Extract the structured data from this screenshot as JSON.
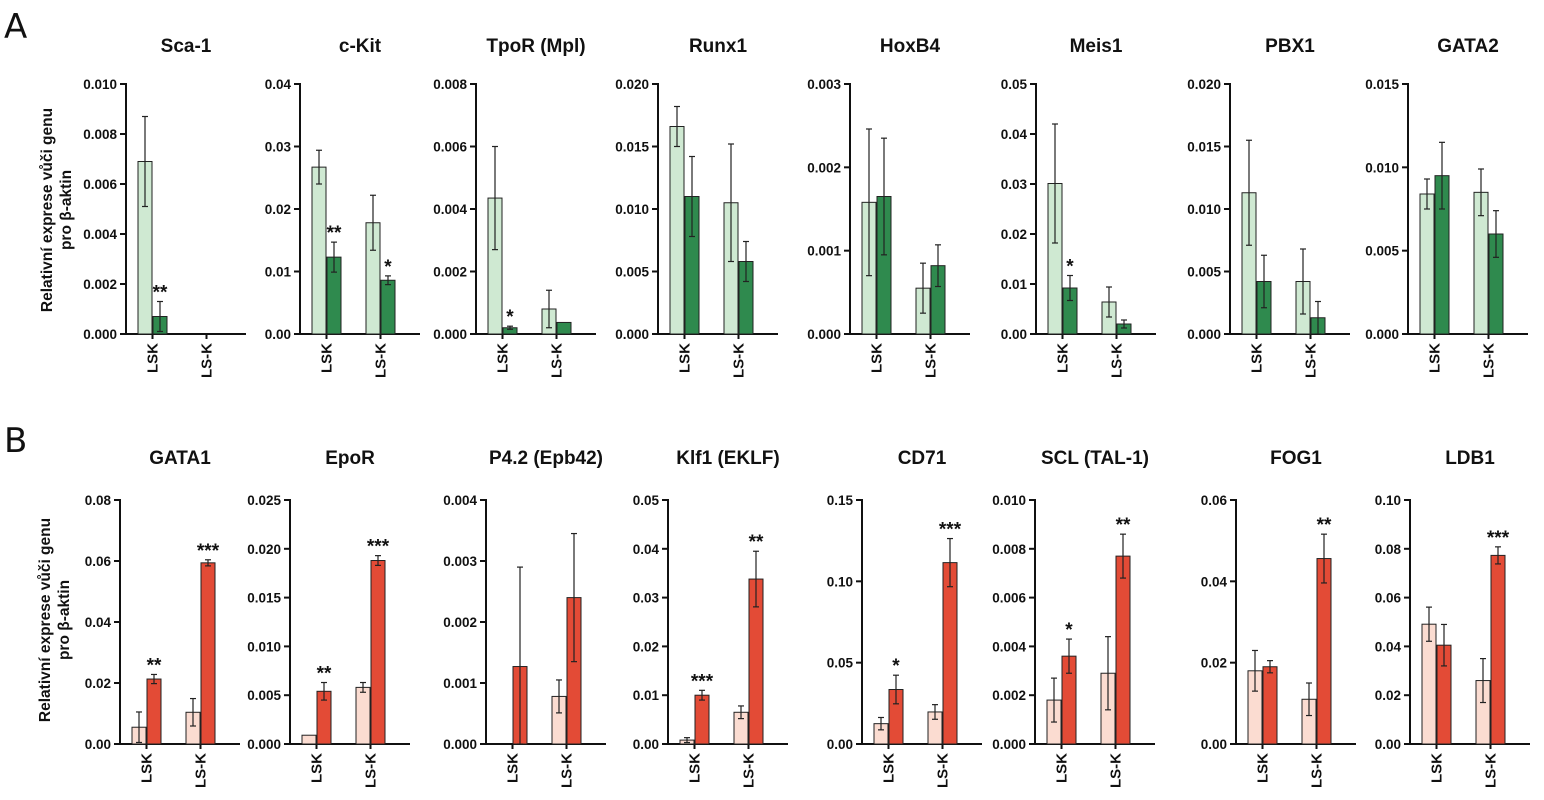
{
  "panels": [
    {
      "letter": "A",
      "y_axis_label_line1": "Relativní exprese vůči genu",
      "y_axis_label_line2": "pro β-aktin"
    },
    {
      "letter": "B",
      "y_axis_label_line1": "Relativní exprese vůči genu",
      "y_axis_label_line2": "pro β-aktin"
    }
  ],
  "colors": {
    "A_light": "#cfe9d2",
    "A_dark": "#2f8a4e",
    "B_light": "#fbdcd1",
    "B_dark": "#e34b36",
    "stroke": "#222222"
  },
  "chart_data": [
    {
      "panel": "A",
      "type": "bar",
      "title": "Sca-1",
      "categories": [
        "LSK",
        "LS-K"
      ],
      "ylim": [
        0,
        0.01
      ],
      "yticks": [
        "0.000",
        "0.002",
        "0.004",
        "0.006",
        "0.008",
        "0.010"
      ],
      "series": [
        {
          "values": [
            0.0069,
            null
          ],
          "errors": [
            0.0018,
            null
          ]
        },
        {
          "values": [
            0.0007,
            null
          ],
          "errors": [
            0.0006,
            null
          ]
        }
      ],
      "annotations": [
        {
          "category": "LSK",
          "series": 1,
          "text": "**"
        }
      ]
    },
    {
      "panel": "A",
      "type": "bar",
      "title": "c-Kit",
      "categories": [
        "LSK",
        "LS-K"
      ],
      "ylim": [
        0,
        0.04
      ],
      "yticks": [
        "0.00",
        "0.01",
        "0.02",
        "0.03",
        "0.04"
      ],
      "series": [
        {
          "values": [
            0.0267,
            0.0178
          ],
          "errors": [
            0.0027,
            0.0044
          ]
        },
        {
          "values": [
            0.0123,
            0.0086
          ],
          "errors": [
            0.0024,
            0.0007
          ]
        }
      ],
      "annotations": [
        {
          "category": "LSK",
          "series": 1,
          "text": "**"
        },
        {
          "category": "LS-K",
          "series": 1,
          "text": "*"
        }
      ]
    },
    {
      "panel": "A",
      "type": "bar",
      "title": "TpoR (Mpl)",
      "categories": [
        "LSK",
        "LS-K"
      ],
      "ylim": [
        0,
        0.008
      ],
      "yticks": [
        "0.000",
        "0.002",
        "0.004",
        "0.006",
        "0.008"
      ],
      "series": [
        {
          "values": [
            0.00435,
            0.0008
          ],
          "errors": [
            0.00165,
            0.0006
          ]
        },
        {
          "values": [
            0.0002,
            0.00037
          ],
          "errors": [
            5e-05,
            0
          ]
        }
      ],
      "annotations": [
        {
          "category": "LSK",
          "series": 1,
          "text": "*"
        }
      ]
    },
    {
      "panel": "A",
      "type": "bar",
      "title": "Runx1",
      "categories": [
        "LSK",
        "LS-K"
      ],
      "ylim": [
        0,
        0.02
      ],
      "yticks": [
        "0.000",
        "0.005",
        "0.010",
        "0.015",
        "0.020"
      ],
      "series": [
        {
          "values": [
            0.0166,
            0.0105
          ],
          "errors": [
            0.0016,
            0.0047
          ]
        },
        {
          "values": [
            0.011,
            0.0058
          ],
          "errors": [
            0.0032,
            0.0016
          ]
        }
      ],
      "annotations": []
    },
    {
      "panel": "A",
      "type": "bar",
      "title": "HoxB4",
      "categories": [
        "LSK",
        "LS-K"
      ],
      "ylim": [
        0,
        0.003
      ],
      "yticks": [
        "0.000",
        "0.001",
        "0.002",
        "0.003"
      ],
      "series": [
        {
          "values": [
            0.00158,
            0.00055
          ],
          "errors": [
            0.00088,
            0.0003
          ]
        },
        {
          "values": [
            0.00165,
            0.00082
          ],
          "errors": [
            0.0007,
            0.00025
          ]
        }
      ],
      "annotations": []
    },
    {
      "panel": "A",
      "type": "bar",
      "title": "Meis1",
      "categories": [
        "LSK",
        "LS-K"
      ],
      "ylim": [
        0,
        0.05
      ],
      "yticks": [
        "0.00",
        "0.01",
        "0.02",
        "0.03",
        "0.04",
        "0.05"
      ],
      "series": [
        {
          "values": [
            0.0301,
            0.0064
          ],
          "errors": [
            0.0119,
            0.003
          ]
        },
        {
          "values": [
            0.0092,
            0.002
          ],
          "errors": [
            0.0025,
            0.0008
          ]
        }
      ],
      "annotations": [
        {
          "category": "LSK",
          "series": 1,
          "text": "*"
        }
      ]
    },
    {
      "panel": "A",
      "type": "bar",
      "title": "PBX1",
      "categories": [
        "LSK",
        "LS-K"
      ],
      "ylim": [
        0,
        0.02
      ],
      "yticks": [
        "0.000",
        "0.005",
        "0.010",
        "0.015",
        "0.020"
      ],
      "series": [
        {
          "values": [
            0.0113,
            0.0042
          ],
          "errors": [
            0.0042,
            0.0026
          ]
        },
        {
          "values": [
            0.0042,
            0.0013
          ],
          "errors": [
            0.0021,
            0.0013
          ]
        }
      ],
      "annotations": []
    },
    {
      "panel": "A",
      "type": "bar",
      "title": "GATA2",
      "categories": [
        "LSK",
        "LS-K"
      ],
      "ylim": [
        0,
        0.015
      ],
      "yticks": [
        "0.000",
        "0.005",
        "0.010",
        "0.015"
      ],
      "series": [
        {
          "values": [
            0.0084,
            0.0085
          ],
          "errors": [
            0.0009,
            0.0014
          ]
        },
        {
          "values": [
            0.0095,
            0.006
          ],
          "errors": [
            0.002,
            0.0014
          ]
        }
      ],
      "annotations": []
    },
    {
      "panel": "B",
      "type": "bar",
      "title": "GATA1",
      "categories": [
        "LSK",
        "LS-K"
      ],
      "ylim": [
        0,
        0.08
      ],
      "yticks": [
        "0.00",
        "0.02",
        "0.04",
        "0.06",
        "0.08"
      ],
      "series": [
        {
          "values": [
            0.0055,
            0.0104
          ],
          "errors": [
            0.005,
            0.0045
          ]
        },
        {
          "values": [
            0.0213,
            0.0594
          ],
          "errors": [
            0.0015,
            0.001
          ]
        }
      ],
      "annotations": [
        {
          "category": "LSK",
          "series": 1,
          "text": "**"
        },
        {
          "category": "LS-K",
          "series": 1,
          "text": "***"
        }
      ]
    },
    {
      "panel": "B",
      "type": "bar",
      "title": "EpoR",
      "categories": [
        "LSK",
        "LS-K"
      ],
      "ylim": [
        0,
        0.025
      ],
      "yticks": [
        "0.000",
        "0.005",
        "0.010",
        "0.015",
        "0.020",
        "0.025"
      ],
      "series": [
        {
          "values": [
            0.0009,
            0.0058
          ],
          "errors": [
            0,
            0.0005
          ]
        },
        {
          "values": [
            0.0054,
            0.0188
          ],
          "errors": [
            0.0009,
            0.0005
          ]
        }
      ],
      "annotations": [
        {
          "category": "LSK",
          "series": 1,
          "text": "**"
        },
        {
          "category": "LS-K",
          "series": 1,
          "text": "***"
        }
      ]
    },
    {
      "panel": "B",
      "type": "bar",
      "title": "P4.2 (Epb42)",
      "categories": [
        "LSK",
        "LS-K"
      ],
      "ylim": [
        0,
        0.004
      ],
      "yticks": [
        "0.000",
        "0.001",
        "0.002",
        "0.003",
        "0.004"
      ],
      "series": [
        {
          "values": [
            0,
            0.00078
          ],
          "errors": [
            0,
            0.00027
          ]
        },
        {
          "values": [
            0.00127,
            0.0024
          ],
          "errors": [
            0.00163,
            0.00105
          ]
        }
      ],
      "annotations": []
    },
    {
      "panel": "B",
      "type": "bar",
      "title": "Klf1 (EKLF)",
      "categories": [
        "LSK",
        "LS-K"
      ],
      "ylim": [
        0,
        0.05
      ],
      "yticks": [
        "0.00",
        "0.01",
        "0.02",
        "0.03",
        "0.04",
        "0.05"
      ],
      "series": [
        {
          "values": [
            0.0008,
            0.0065
          ],
          "errors": [
            0.0005,
            0.0013
          ]
        },
        {
          "values": [
            0.01,
            0.0338
          ],
          "errors": [
            0.001,
            0.0057
          ]
        }
      ],
      "annotations": [
        {
          "category": "LSK",
          "series": 1,
          "text": "***"
        },
        {
          "category": "LS-K",
          "series": 1,
          "text": "**"
        }
      ]
    },
    {
      "panel": "B",
      "type": "bar",
      "title": "CD71",
      "categories": [
        "LSK",
        "LS-K"
      ],
      "ylim": [
        0,
        0.15
      ],
      "yticks": [
        "0.00",
        "0.05",
        "0.10",
        "0.15"
      ],
      "series": [
        {
          "values": [
            0.0125,
            0.0197
          ],
          "errors": [
            0.0038,
            0.0045
          ]
        },
        {
          "values": [
            0.0335,
            0.1115
          ],
          "errors": [
            0.0088,
            0.0148
          ]
        }
      ],
      "annotations": [
        {
          "category": "LSK",
          "series": 1,
          "text": "*"
        },
        {
          "category": "LS-K",
          "series": 1,
          "text": "***"
        }
      ]
    },
    {
      "panel": "B",
      "type": "bar",
      "title": "SCL (TAL-1)",
      "categories": [
        "LSK",
        "LS-K"
      ],
      "ylim": [
        0,
        0.01
      ],
      "yticks": [
        "0.000",
        "0.002",
        "0.004",
        "0.006",
        "0.008",
        "0.010"
      ],
      "series": [
        {
          "values": [
            0.0018,
            0.0029
          ],
          "errors": [
            0.0009,
            0.0015
          ]
        },
        {
          "values": [
            0.0036,
            0.0077
          ],
          "errors": [
            0.0007,
            0.0009
          ]
        }
      ],
      "annotations": [
        {
          "category": "LSK",
          "series": 1,
          "text": "*"
        },
        {
          "category": "LS-K",
          "series": 1,
          "text": "**"
        }
      ]
    },
    {
      "panel": "B",
      "type": "bar",
      "title": "FOG1",
      "categories": [
        "LSK",
        "LS-K"
      ],
      "ylim": [
        0,
        0.06
      ],
      "yticks": [
        "0.00",
        "0.02",
        "0.04",
        "0.06"
      ],
      "series": [
        {
          "values": [
            0.018,
            0.011
          ],
          "errors": [
            0.005,
            0.004
          ]
        },
        {
          "values": [
            0.019,
            0.0456
          ],
          "errors": [
            0.0015,
            0.006
          ]
        }
      ],
      "annotations": [
        {
          "category": "LS-K",
          "series": 1,
          "text": "**"
        }
      ]
    },
    {
      "panel": "B",
      "type": "bar",
      "title": "LDB1",
      "categories": [
        "LSK",
        "LS-K"
      ],
      "ylim": [
        0,
        0.1
      ],
      "yticks": [
        "0.00",
        "0.02",
        "0.04",
        "0.06",
        "0.08",
        "0.10"
      ],
      "series": [
        {
          "values": [
            0.0491,
            0.026
          ],
          "errors": [
            0.007,
            0.009
          ]
        },
        {
          "values": [
            0.0405,
            0.0773
          ],
          "errors": [
            0.0085,
            0.0035
          ]
        }
      ],
      "annotations": [
        {
          "category": "LS-K",
          "series": 1,
          "text": "***"
        }
      ]
    }
  ]
}
